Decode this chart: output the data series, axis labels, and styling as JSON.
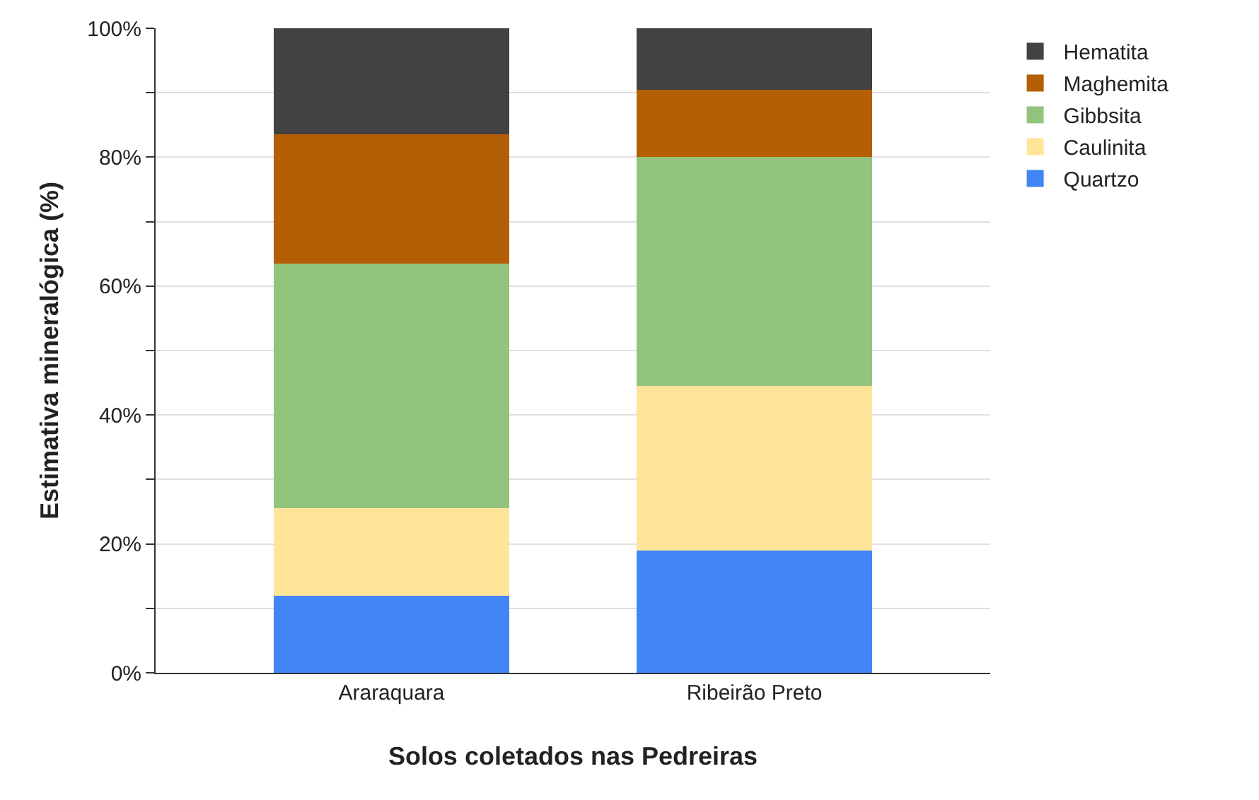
{
  "chart_data": {
    "type": "bar",
    "stacked": true,
    "xlabel": "Solos coletados nas Pedreiras",
    "ylabel": "Estimativa mineralógica (%)",
    "categories": [
      "Araraquara",
      "Ribeirão Preto"
    ],
    "series": [
      {
        "name": "Quartzo",
        "color": "#4285f4",
        "values": [
          12,
          19
        ]
      },
      {
        "name": "Caulinita",
        "color": "#ffe599",
        "values": [
          13.5,
          25.5
        ]
      },
      {
        "name": "Gibbsita",
        "color": "#93c47d",
        "values": [
          38,
          35.5
        ]
      },
      {
        "name": "Maghemita",
        "color": "#b45f06",
        "values": [
          20,
          10.5
        ]
      },
      {
        "name": "Hematita",
        "color": "#424242",
        "values": [
          16.5,
          9.5
        ]
      }
    ],
    "ylim": [
      0,
      100
    ],
    "yticks": [
      {
        "value": 0,
        "label": "0%"
      },
      {
        "value": 10,
        "label": null
      },
      {
        "value": 20,
        "label": "20%"
      },
      {
        "value": 30,
        "label": null
      },
      {
        "value": 40,
        "label": "40%"
      },
      {
        "value": 50,
        "label": null
      },
      {
        "value": 60,
        "label": "60%"
      },
      {
        "value": 70,
        "label": null
      },
      {
        "value": 80,
        "label": "80%"
      },
      {
        "value": 90,
        "label": null
      },
      {
        "value": 100,
        "label": "100%"
      }
    ],
    "grid": "y",
    "legend": "right"
  }
}
